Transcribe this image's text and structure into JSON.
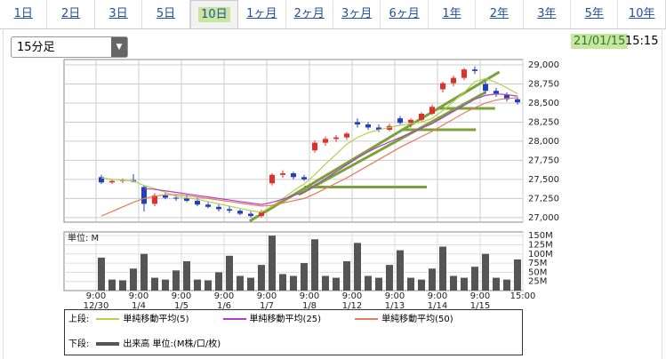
{
  "tabs": [
    "1日",
    "2日",
    "3日",
    "5日",
    "10日",
    "1ヶ月",
    "2ヶ月",
    "3ヶ月",
    "6ヶ月",
    "1年",
    "2年",
    "3年",
    "5年",
    "10年"
  ],
  "selected_tab": 4,
  "interval": "15分足",
  "date": "21/01/15",
  "time": "15:15",
  "chart_data": {
    "type": "candlestick",
    "xlim": [
      -3,
      40
    ],
    "xticks": [
      {
        "value": 0,
        "label": "9:00",
        "date": "12/30"
      },
      {
        "value": 4,
        "label": "9:00",
        "date": "1/4"
      },
      {
        "value": 8,
        "label": "9:00",
        "date": "1/5"
      },
      {
        "value": 12,
        "label": "9:00",
        "date": "1/6"
      },
      {
        "value": 16,
        "label": "9:00",
        "date": "1/7"
      },
      {
        "value": 20,
        "label": "9:00",
        "date": "1/8"
      },
      {
        "value": 24,
        "label": "9:00",
        "date": "1/12"
      },
      {
        "value": 28,
        "label": "9:00",
        "date": "1/13"
      },
      {
        "value": 32,
        "label": "9:00",
        "date": "1/14"
      },
      {
        "value": 36,
        "label": "9:00",
        "date": "1/15"
      },
      {
        "value": 40,
        "label": "15:00"
      }
    ],
    "ylim": [
      26940,
      29070
    ],
    "yticks": [
      {
        "value": 27000,
        "label": "27,000"
      },
      {
        "value": 27250,
        "label": "27,250"
      },
      {
        "value": 27500,
        "label": "27,500"
      },
      {
        "value": 27750,
        "label": "27,750"
      },
      {
        "value": 28000,
        "label": "28,000"
      },
      {
        "value": 28250,
        "label": "28,250"
      },
      {
        "value": 28500,
        "label": "28,500"
      },
      {
        "value": 28750,
        "label": "28,750"
      },
      {
        "value": 29000,
        "label": "29,000"
      }
    ],
    "grid": true,
    "up_color": "#e0302a",
    "down_color": "#2040c0",
    "ohlc": [
      [
        27530,
        27560,
        27440,
        27460
      ],
      [
        27460,
        27500,
        27440,
        27480
      ],
      [
        27480,
        27510,
        27450,
        27490
      ],
      [
        27490,
        27570,
        27460,
        27470
      ],
      [
        27400,
        27420,
        27080,
        27180
      ],
      [
        27180,
        27320,
        27150,
        27290
      ],
      [
        27290,
        27320,
        27240,
        27260
      ],
      [
        27260,
        27300,
        27220,
        27250
      ],
      [
        27250,
        27300,
        27200,
        27220
      ],
      [
        27220,
        27260,
        27150,
        27170
      ],
      [
        27170,
        27200,
        27120,
        27140
      ],
      [
        27140,
        27170,
        27080,
        27110
      ],
      [
        27110,
        27150,
        27060,
        27090
      ],
      [
        27090,
        27110,
        27030,
        27050
      ],
      [
        27050,
        27080,
        27000,
        27020
      ],
      [
        27020,
        27100,
        27000,
        27080
      ],
      [
        27450,
        27580,
        27420,
        27560
      ],
      [
        27560,
        27620,
        27520,
        27580
      ],
      [
        27580,
        27600,
        27500,
        27530
      ],
      [
        27530,
        27560,
        27480,
        27500
      ],
      [
        27880,
        28010,
        27850,
        27980
      ],
      [
        27980,
        28060,
        27940,
        28030
      ],
      [
        28030,
        28080,
        27990,
        28050
      ],
      [
        28050,
        28120,
        28020,
        28100
      ],
      [
        28250,
        28300,
        28180,
        28220
      ],
      [
        28220,
        28250,
        28150,
        28180
      ],
      [
        28180,
        28220,
        28120,
        28150
      ],
      [
        28150,
        28230,
        28130,
        28200
      ],
      [
        28300,
        28330,
        28220,
        28240
      ],
      [
        28240,
        28300,
        28180,
        28280
      ],
      [
        28280,
        28380,
        28260,
        28360
      ],
      [
        28360,
        28480,
        28340,
        28450
      ],
      [
        28680,
        28780,
        28640,
        28760
      ],
      [
        28760,
        28860,
        28720,
        28830
      ],
      [
        28830,
        28960,
        28800,
        28940
      ],
      [
        28940,
        28980,
        28880,
        28920
      ],
      [
        28750,
        28780,
        28620,
        28660
      ],
      [
        28660,
        28700,
        28580,
        28610
      ],
      [
        28610,
        28640,
        28520,
        28550
      ],
      [
        28550,
        28580,
        28480,
        28510
      ]
    ],
    "upper_label": "上段:",
    "series": [
      {
        "name": "単純移動平均(5)",
        "color": "#b8cc50",
        "values": [
          27520,
          27500,
          27490,
          27480,
          27420,
          27380,
          27330,
          27280,
          27260,
          27240,
          27210,
          27180,
          27150,
          27120,
          27090,
          27070,
          27150,
          27250,
          27350,
          27440,
          27560,
          27700,
          27830,
          27960,
          28050,
          28110,
          28150,
          28180,
          28210,
          28230,
          28250,
          28300,
          28400,
          28520,
          28640,
          28780,
          28820,
          28770,
          28700,
          28620
        ]
      },
      {
        "name": "単純移動平均(25)",
        "color": "#b040c8",
        "values": [
          null,
          null,
          null,
          null,
          27380,
          27370,
          27350,
          27330,
          27310,
          27290,
          27270,
          27250,
          27230,
          27210,
          27190,
          27170,
          27200,
          27240,
          27290,
          27330,
          27420,
          27510,
          27600,
          27690,
          27780,
          27860,
          27930,
          27990,
          28050,
          28110,
          28170,
          28230,
          28310,
          28390,
          28470,
          28550,
          28600,
          28620,
          28610,
          28590
        ]
      },
      {
        "name": "単純移動平均(50)",
        "color": "#e87a5a",
        "values": [
          27020,
          27080,
          27140,
          27200,
          27250,
          27280,
          27300,
          27300,
          27290,
          27270,
          27250,
          27230,
          27210,
          27190,
          27170,
          27150,
          27160,
          27190,
          27220,
          27250,
          27310,
          27380,
          27450,
          27520,
          27600,
          27680,
          27760,
          27840,
          27920,
          27990,
          28060,
          28130,
          28210,
          28290,
          28370,
          28440,
          28500,
          28540,
          28560,
          28570
        ]
      }
    ],
    "trendline_color": "#7aa23a",
    "trendlines": [
      {
        "x": [
          14.4,
          37.8
        ],
        "y": [
          26954,
          28908
        ]
      },
      {
        "x": [
          19.5,
          31
        ],
        "y": [
          27400,
          27400
        ]
      },
      {
        "x": [
          19,
          36.5
        ],
        "y": [
          27300,
          28640
        ]
      },
      {
        "x": [
          28.6,
          35.6
        ],
        "y": [
          28150,
          28150
        ]
      },
      {
        "x": [
          32,
          37.4
        ],
        "y": [
          28430,
          28430
        ]
      }
    ],
    "volume": {
      "unit": "単位: M",
      "name": "出来高 単位:(M株/口/枚)",
      "lower_label": "下段:",
      "color": "#555555",
      "ylim": [
        0,
        160
      ],
      "yticks": [
        {
          "value": 25,
          "label": "25M"
        },
        {
          "value": 50,
          "label": "50M"
        },
        {
          "value": 75,
          "label": "75M"
        },
        {
          "value": 100,
          "label": "100M"
        },
        {
          "value": 125,
          "label": "125M"
        },
        {
          "value": 150,
          "label": "150M"
        }
      ],
      "values": [
        90,
        30,
        28,
        60,
        100,
        35,
        30,
        55,
        80,
        30,
        28,
        50,
        95,
        40,
        35,
        70,
        150,
        45,
        40,
        75,
        140,
        40,
        35,
        80,
        130,
        40,
        35,
        70,
        110,
        35,
        30,
        60,
        120,
        40,
        35,
        65,
        100,
        35,
        30,
        85
      ]
    }
  }
}
